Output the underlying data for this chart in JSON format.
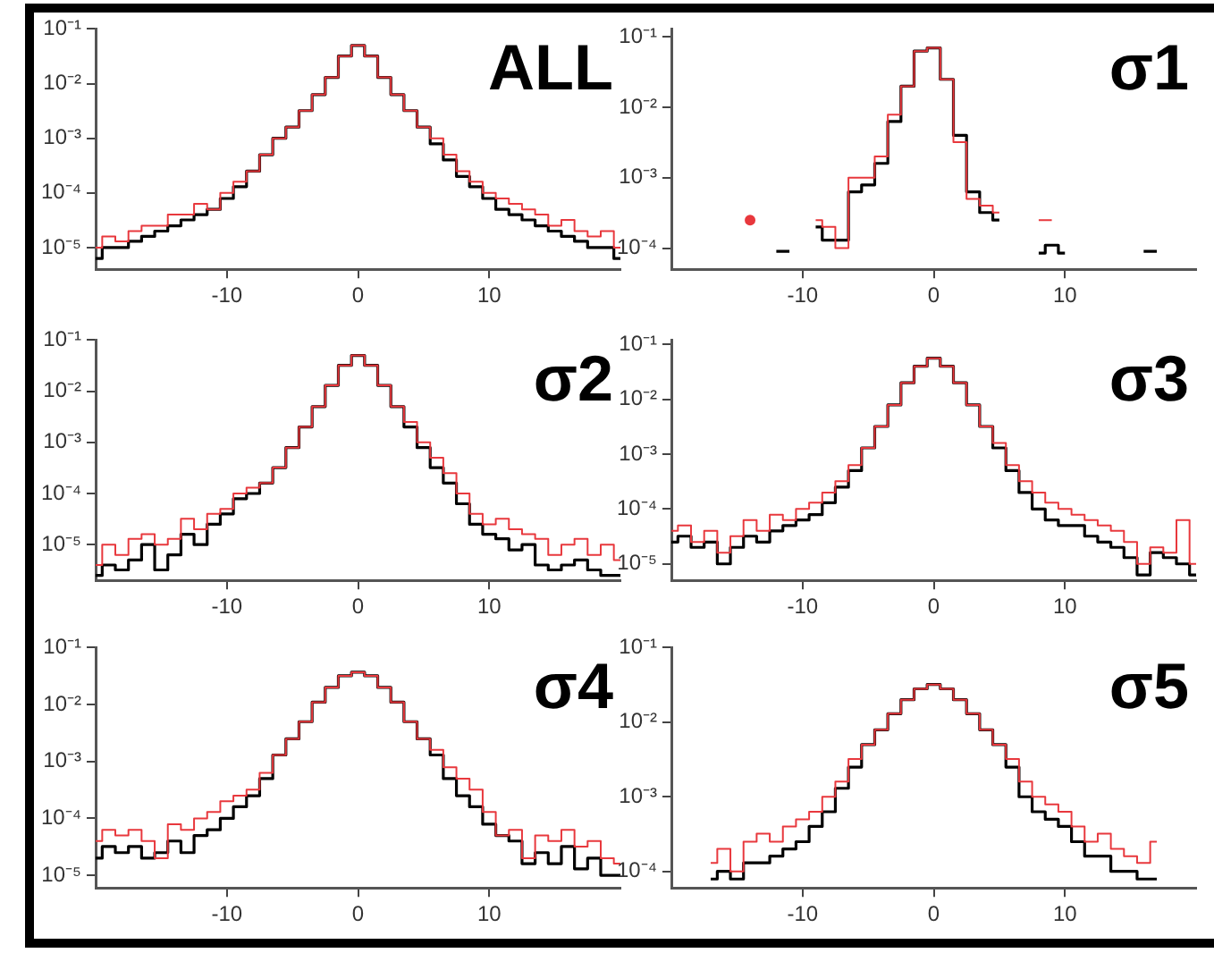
{
  "chart_data": [
    {
      "type": "step",
      "title": "ALL",
      "log": true,
      "xlim": [
        -20,
        20
      ],
      "xticks": [
        -10,
        0,
        10
      ],
      "ylim": [
        4e-06,
        0.1
      ],
      "yticks": [
        {
          "value": 0.1,
          "label": "10⁻¹"
        },
        {
          "value": 0.01,
          "label": "10⁻²"
        },
        {
          "value": 0.001,
          "label": "10⁻³"
        },
        {
          "value": 0.0001,
          "label": "10⁻⁴"
        },
        {
          "value": 1e-05,
          "label": "10⁻⁵"
        }
      ],
      "x": [
        -20,
        -19,
        -18,
        -17,
        -16,
        -15,
        -14,
        -13,
        -12,
        -11,
        -10,
        -9,
        -8,
        -7,
        -6,
        -5,
        -4,
        -3,
        -2,
        -1,
        0,
        1,
        2,
        3,
        4,
        5,
        6,
        7,
        8,
        9,
        10,
        11,
        12,
        13,
        14,
        15,
        16,
        17,
        18,
        19,
        20
      ],
      "series": [
        {
          "color": "#000000",
          "values": [
            6.3e-06,
            1e-05,
            1e-05,
            1.3e-05,
            1.6e-05,
            2e-05,
            2.5e-05,
            3.2e-05,
            4e-05,
            5e-05,
            7.9e-05,
            0.00013,
            0.00025,
            0.0005,
            0.001,
            0.0016,
            0.0032,
            0.0063,
            0.013,
            0.032,
            0.05,
            0.032,
            0.013,
            0.0063,
            0.0032,
            0.0016,
            0.00079,
            0.0004,
            0.0002,
            0.00013,
            7.9e-05,
            5e-05,
            4e-05,
            3.2e-05,
            2.5e-05,
            2e-05,
            1.6e-05,
            1.3e-05,
            1e-05,
            1e-05,
            6.3e-06
          ]
        },
        {
          "color": "#e8383d",
          "values": [
            1e-05,
            1.6e-05,
            1.3e-05,
            2e-05,
            2.5e-05,
            2.5e-05,
            4e-05,
            4e-05,
            6.3e-05,
            5e-05,
            0.0001,
            0.00016,
            0.00025,
            0.0005,
            0.001,
            0.0016,
            0.0032,
            0.0063,
            0.013,
            0.032,
            0.05,
            0.032,
            0.013,
            0.0063,
            0.0032,
            0.0016,
            0.001,
            0.0005,
            0.00025,
            0.00016,
            0.0001,
            7.9e-05,
            6.3e-05,
            5e-05,
            4e-05,
            2.5e-05,
            3.2e-05,
            2e-05,
            1.6e-05,
            2e-05,
            1e-05
          ]
        }
      ]
    },
    {
      "type": "step",
      "title": "σ1",
      "log": true,
      "xlim": [
        -20,
        20
      ],
      "xticks": [
        -10,
        0,
        10
      ],
      "ylim": [
        5e-05,
        0.13
      ],
      "yticks": [
        {
          "value": 0.1,
          "label": "10⁻¹"
        },
        {
          "value": 0.01,
          "label": "10⁻²"
        },
        {
          "value": 0.001,
          "label": "10⁻³"
        },
        {
          "value": 0.0001,
          "label": "10⁻⁴"
        }
      ],
      "x": [
        -14,
        -13,
        -12,
        -11,
        -10,
        -9,
        -8,
        -7,
        -6,
        -5,
        -4,
        -3,
        -2,
        -1,
        0,
        1,
        2,
        3,
        4,
        5,
        6,
        7,
        8,
        9,
        10,
        11,
        12,
        13,
        14,
        15,
        16,
        17
      ],
      "series": [
        {
          "color": "#000000",
          "values": [
            null,
            null,
            9e-05,
            9e-05,
            null,
            0.0002,
            0.00013,
            0.00013,
            0.00063,
            0.00079,
            0.0016,
            0.0063,
            0.02,
            0.063,
            0.07,
            0.025,
            0.004,
            0.00063,
            0.00032,
            0.00025,
            null,
            null,
            8.5e-05,
            0.00011,
            8.5e-05,
            null,
            null,
            null,
            null,
            null,
            9e-05,
            9e-05
          ]
        },
        {
          "color": "#e8383d",
          "values": [
            0.00025,
            null,
            null,
            null,
            null,
            0.00025,
            0.0002,
            0.0001,
            0.001,
            0.001,
            0.002,
            0.0079,
            0.02,
            0.063,
            0.07,
            0.025,
            0.0032,
            0.0005,
            0.0004,
            0.00032,
            null,
            null,
            0.00025,
            0.00025,
            null,
            null,
            null,
            null,
            null,
            null,
            null,
            null
          ]
        }
      ]
    },
    {
      "type": "step",
      "title": "σ2",
      "log": true,
      "xlim": [
        -20,
        20
      ],
      "xticks": [
        -10,
        0,
        10
      ],
      "ylim": [
        2e-06,
        0.1
      ],
      "yticks": [
        {
          "value": 0.1,
          "label": "10⁻¹"
        },
        {
          "value": 0.01,
          "label": "10⁻²"
        },
        {
          "value": 0.001,
          "label": "10⁻³"
        },
        {
          "value": 0.0001,
          "label": "10⁻⁴"
        },
        {
          "value": 1e-05,
          "label": "10⁻⁵"
        }
      ],
      "x": [
        -20,
        -19,
        -18,
        -17,
        -16,
        -15,
        -14,
        -13,
        -12,
        -11,
        -10,
        -9,
        -8,
        -7,
        -6,
        -5,
        -4,
        -3,
        -2,
        -1,
        0,
        1,
        2,
        3,
        4,
        5,
        6,
        7,
        8,
        9,
        10,
        11,
        12,
        13,
        14,
        15,
        16,
        17,
        18,
        19,
        20
      ],
      "series": [
        {
          "color": "#000000",
          "values": [
            2.5e-06,
            4e-06,
            3.2e-06,
            5e-06,
            1e-05,
            3.2e-06,
            6.3e-06,
            1.6e-05,
            1e-05,
            2.5e-05,
            4e-05,
            7.9e-05,
            0.0001,
            0.00016,
            0.00032,
            0.00079,
            0.002,
            0.005,
            0.013,
            0.032,
            0.05,
            0.032,
            0.013,
            0.005,
            0.002,
            0.00079,
            0.00032,
            0.00016,
            6.3e-05,
            2.5e-05,
            1.6e-05,
            1.3e-05,
            7.9e-06,
            1e-05,
            4e-06,
            3.2e-06,
            4e-06,
            5e-06,
            3.2e-06,
            2.5e-06,
            2.5e-06
          ]
        },
        {
          "color": "#e8383d",
          "values": [
            4e-06,
            1e-05,
            6.3e-06,
            1.3e-05,
            1.6e-05,
            1e-05,
            1.3e-05,
            3.2e-05,
            2e-05,
            4e-05,
            5e-05,
            0.0001,
            0.00013,
            0.00016,
            0.00032,
            0.00079,
            0.002,
            0.005,
            0.013,
            0.032,
            0.05,
            0.032,
            0.013,
            0.005,
            0.0025,
            0.001,
            0.0005,
            0.00025,
            0.0001,
            4e-05,
            2.5e-05,
            3.2e-05,
            2e-05,
            1.6e-05,
            1.3e-05,
            6.3e-06,
            1e-05,
            1.3e-05,
            6.3e-06,
            1e-05,
            5e-06
          ]
        }
      ]
    },
    {
      "type": "step",
      "title": "σ3",
      "log": true,
      "xlim": [
        -20,
        20
      ],
      "xticks": [
        -10,
        0,
        10
      ],
      "ylim": [
        5e-06,
        0.12
      ],
      "yticks": [
        {
          "value": 0.1,
          "label": "10⁻¹"
        },
        {
          "value": 0.01,
          "label": "10⁻²"
        },
        {
          "value": 0.001,
          "label": "10⁻³"
        },
        {
          "value": 0.0001,
          "label": "10⁻⁴"
        },
        {
          "value": 1e-05,
          "label": "10⁻⁵"
        }
      ],
      "x": [
        -20,
        -19,
        -18,
        -17,
        -16,
        -15,
        -14,
        -13,
        -12,
        -11,
        -10,
        -9,
        -8,
        -7,
        -6,
        -5,
        -4,
        -3,
        -2,
        -1,
        0,
        1,
        2,
        3,
        4,
        5,
        6,
        7,
        8,
        9,
        10,
        11,
        12,
        13,
        14,
        15,
        16,
        17,
        18,
        19,
        20
      ],
      "series": [
        {
          "color": "#000000",
          "values": [
            2.5e-05,
            3.2e-05,
            2e-05,
            2.5e-05,
            1e-05,
            2e-05,
            3.2e-05,
            2.5e-05,
            4e-05,
            5e-05,
            6.3e-05,
            7.9e-05,
            0.00013,
            0.00025,
            0.0005,
            0.0013,
            0.0032,
            0.0079,
            0.02,
            0.04,
            0.056,
            0.04,
            0.02,
            0.0079,
            0.0032,
            0.0013,
            0.0005,
            0.0002,
            0.0001,
            6.3e-05,
            5e-05,
            5e-05,
            3.2e-05,
            2.5e-05,
            2e-05,
            1.3e-05,
            6.3e-06,
            1.6e-05,
            1.3e-05,
            1e-05,
            6.3e-06
          ]
        },
        {
          "color": "#e8383d",
          "values": [
            4e-05,
            5e-05,
            2.5e-05,
            4e-05,
            1.6e-05,
            3.2e-05,
            6.3e-05,
            4e-05,
            7.9e-05,
            6.3e-05,
            0.0001,
            0.00013,
            0.0002,
            0.00032,
            0.00063,
            0.0013,
            0.0032,
            0.0079,
            0.02,
            0.04,
            0.056,
            0.04,
            0.02,
            0.0079,
            0.0032,
            0.0016,
            0.00063,
            0.00032,
            0.0002,
            0.00013,
            0.0001,
            7.9e-05,
            6.3e-05,
            5e-05,
            4e-05,
            2.5e-05,
            1e-05,
            2e-05,
            1.6e-05,
            6.3e-05,
            1e-05
          ]
        }
      ]
    },
    {
      "type": "step",
      "title": "σ4",
      "log": true,
      "xlim": [
        -20,
        20
      ],
      "xticks": [
        -10,
        0,
        10
      ],
      "ylim": [
        6e-06,
        0.1
      ],
      "yticks": [
        {
          "value": 0.1,
          "label": "10⁻¹"
        },
        {
          "value": 0.01,
          "label": "10⁻²"
        },
        {
          "value": 0.001,
          "label": "10⁻³"
        },
        {
          "value": 0.0001,
          "label": "10⁻⁴"
        },
        {
          "value": 1e-05,
          "label": "10⁻⁵"
        }
      ],
      "x": [
        -20,
        -19,
        -18,
        -17,
        -16,
        -15,
        -14,
        -13,
        -12,
        -11,
        -10,
        -9,
        -8,
        -7,
        -6,
        -5,
        -4,
        -3,
        -2,
        -1,
        0,
        1,
        2,
        3,
        4,
        5,
        6,
        7,
        8,
        9,
        10,
        11,
        12,
        13,
        14,
        15,
        16,
        17,
        18,
        19,
        20
      ],
      "series": [
        {
          "color": "#000000",
          "values": [
            2e-05,
            3.2e-05,
            2.5e-05,
            3.2e-05,
            2e-05,
            2.5e-05,
            4e-05,
            2.5e-05,
            5e-05,
            6.3e-05,
            0.0001,
            0.00016,
            0.00025,
            0.0005,
            0.0013,
            0.0025,
            0.005,
            0.011,
            0.02,
            0.032,
            0.037,
            0.032,
            0.02,
            0.011,
            0.005,
            0.0025,
            0.0013,
            0.0005,
            0.00025,
            0.00016,
            7.9e-05,
            5e-05,
            4e-05,
            1.6e-05,
            2.5e-05,
            1.6e-05,
            3.2e-05,
            1.3e-05,
            2e-05,
            1e-05,
            1e-05
          ]
        },
        {
          "color": "#e8383d",
          "values": [
            4e-05,
            6.3e-05,
            5e-05,
            6.3e-05,
            4e-05,
            2e-05,
            7.9e-05,
            6.3e-05,
            0.0001,
            0.00013,
            0.0002,
            0.00025,
            0.00032,
            0.00063,
            0.0013,
            0.0025,
            0.005,
            0.011,
            0.02,
            0.032,
            0.037,
            0.032,
            0.02,
            0.011,
            0.005,
            0.0025,
            0.0016,
            0.00079,
            0.0005,
            0.00032,
            0.00013,
            5e-05,
            6.3e-05,
            2e-05,
            5e-05,
            4e-05,
            6.3e-05,
            3.2e-05,
            4e-05,
            2e-05,
            1.6e-05
          ]
        }
      ]
    },
    {
      "type": "step",
      "title": "σ5",
      "log": true,
      "xlim": [
        -20,
        20
      ],
      "xticks": [
        -10,
        0,
        10
      ],
      "ylim": [
        6e-05,
        0.1
      ],
      "yticks": [
        {
          "value": 0.1,
          "label": "10⁻¹"
        },
        {
          "value": 0.01,
          "label": "10⁻²"
        },
        {
          "value": 0.001,
          "label": "10⁻³"
        },
        {
          "value": 0.0001,
          "label": "10⁻⁴"
        }
      ],
      "x": [
        -17,
        -16,
        -15,
        -14,
        -13,
        -12,
        -11,
        -10,
        -9,
        -8,
        -7,
        -6,
        -5,
        -4,
        -3,
        -2,
        -1,
        0,
        1,
        2,
        3,
        4,
        5,
        6,
        7,
        8,
        9,
        10,
        11,
        12,
        13,
        14,
        15,
        16,
        17
      ],
      "series": [
        {
          "color": "#000000",
          "values": [
            7.9e-05,
            0.0001,
            7.9e-05,
            0.00013,
            0.00013,
            0.00016,
            0.0002,
            0.00025,
            0.0004,
            0.00063,
            0.0013,
            0.0025,
            0.005,
            0.0079,
            0.013,
            0.02,
            0.028,
            0.032,
            0.028,
            0.02,
            0.013,
            0.0079,
            0.005,
            0.0025,
            0.001,
            0.00063,
            0.0005,
            0.0004,
            0.00025,
            0.00016,
            0.00016,
            0.0001,
            0.0001,
            7.9e-05,
            7.9e-05
          ]
        },
        {
          "color": "#e8383d",
          "values": [
            0.00013,
            0.0002,
            0.0001,
            0.00025,
            0.00032,
            0.00025,
            0.0004,
            0.0005,
            0.00063,
            0.001,
            0.0016,
            0.0032,
            0.005,
            0.0079,
            0.013,
            0.02,
            0.028,
            0.032,
            0.028,
            0.02,
            0.013,
            0.0079,
            0.005,
            0.0032,
            0.0016,
            0.001,
            0.00079,
            0.00063,
            0.0004,
            0.00025,
            0.00032,
            0.0002,
            0.00016,
            0.00013,
            0.00025
          ]
        }
      ]
    }
  ]
}
